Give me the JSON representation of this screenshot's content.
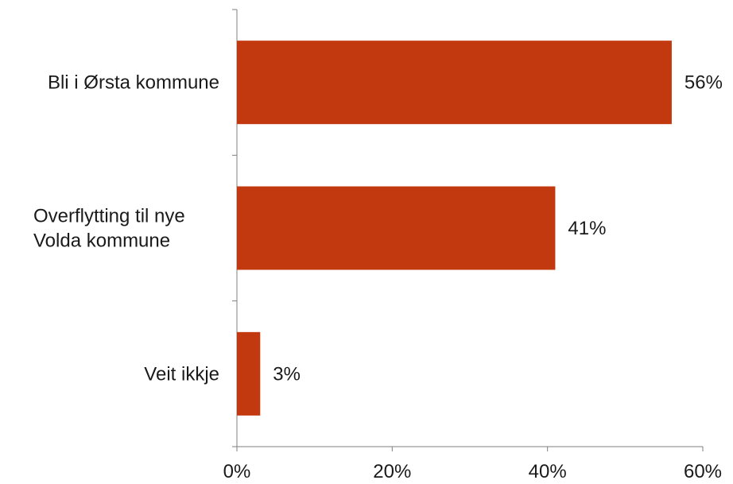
{
  "chart_data": {
    "type": "bar",
    "orientation": "horizontal",
    "categories": [
      "Bli i Ørsta kommune",
      "Overflytting til nye Volda kommune",
      "Veit ikkje"
    ],
    "category_lines": [
      [
        "Bli i Ørsta kommune"
      ],
      [
        "Overflytting til nye",
        "Volda kommune"
      ],
      [
        "Veit ikkje"
      ]
    ],
    "values": [
      56,
      41,
      3
    ],
    "value_labels": [
      "56%",
      "41%",
      "3%"
    ],
    "xlim": [
      0,
      60
    ],
    "xticks": [
      0,
      20,
      40,
      60
    ],
    "xtick_labels": [
      "0%",
      "20%",
      "40%",
      "60%"
    ],
    "bar_color": "#c3390f",
    "grid": false,
    "legend": "none"
  }
}
